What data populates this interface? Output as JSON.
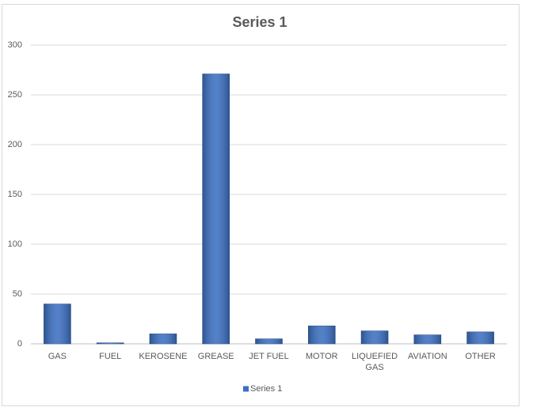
{
  "chart_data": {
    "type": "bar",
    "title": "Series 1",
    "categories": [
      "GAS",
      "FUEL",
      "KEROSENE",
      "GREASE",
      "JET FUEL",
      "MOTOR",
      "LIQUEFIED GAS",
      "AVIATION",
      "OTHER"
    ],
    "series": [
      {
        "name": "Series 1",
        "color": "#3c70c2",
        "values": [
          40,
          1,
          10,
          271,
          5,
          18,
          13,
          9,
          12
        ]
      }
    ],
    "ylim": [
      0,
      300
    ],
    "yticks": [
      0,
      50,
      100,
      150,
      200,
      250,
      300
    ],
    "grid": true,
    "legend": "bottom"
  }
}
